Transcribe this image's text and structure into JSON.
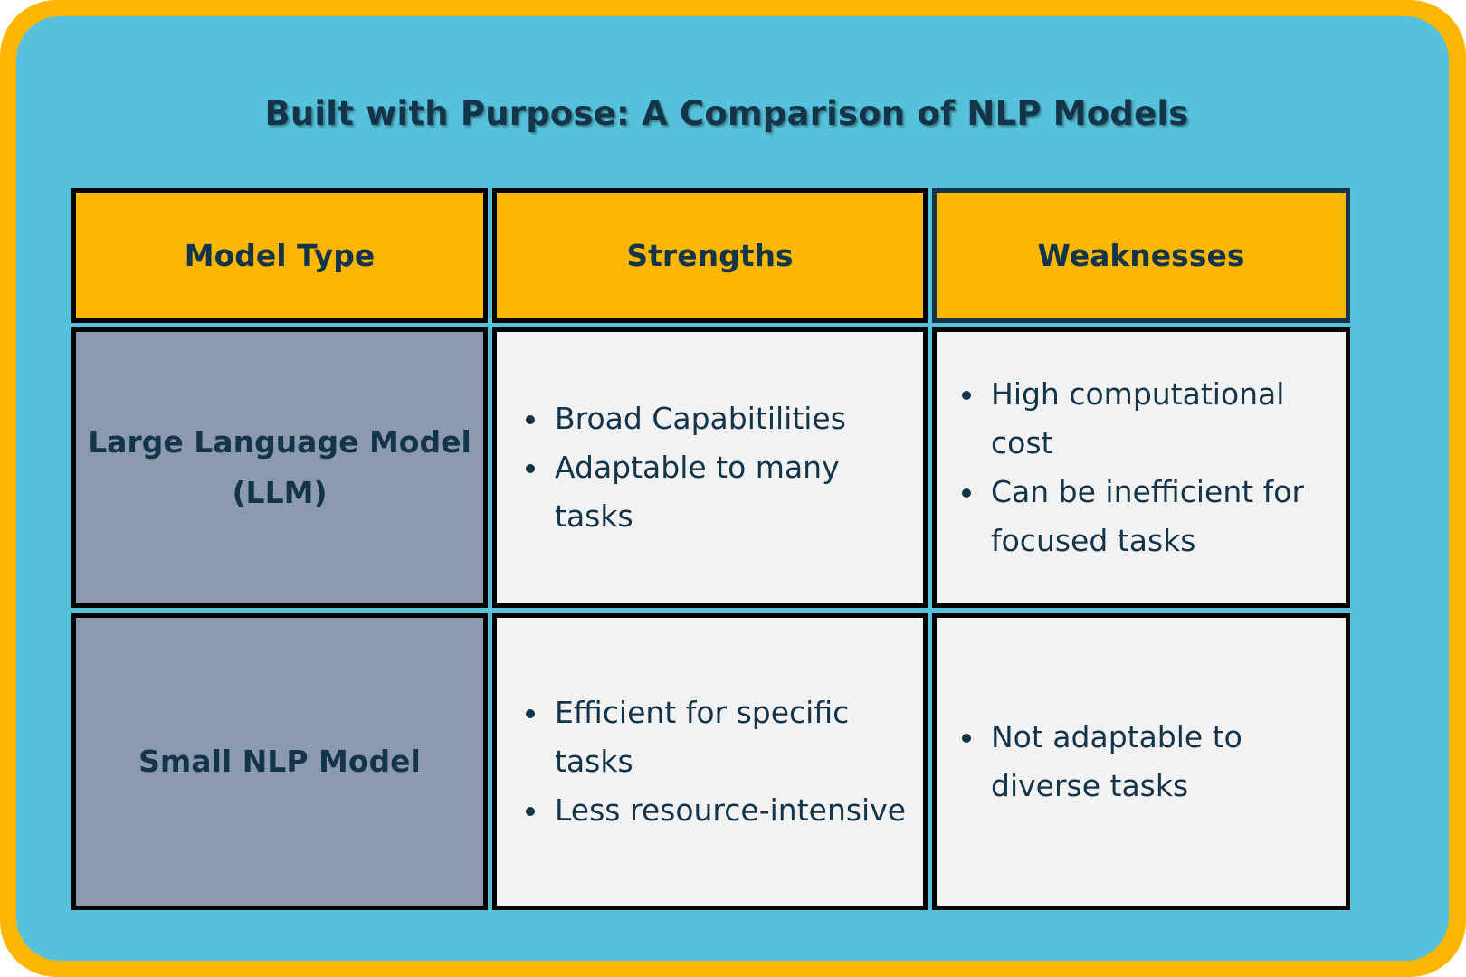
{
  "title": "Built with Purpose: A Comparison of NLP Models",
  "headers": [
    "Model Type",
    "Strengths",
    "Weaknesses"
  ],
  "rows": [
    {
      "model": [
        "Large Language Model",
        "(LLM)"
      ],
      "strengths": [
        "Broad Capabitilities",
        "Adaptable to many tasks"
      ],
      "weaknesses": [
        "High computational cost",
        "Can be inefficient for focused tasks"
      ]
    },
    {
      "model": [
        "Small NLP Model"
      ],
      "strengths": [
        "Efficient for specific tasks",
        "Less resource-intensive"
      ],
      "weaknesses": [
        "Not adaptable to diverse tasks"
      ]
    }
  ],
  "colors": {
    "outer_frame": "#fbb700",
    "panel": "#56c1da",
    "header_fill": "#fbb700",
    "row_header_fill": "#8c9ab0",
    "cell_fill": "#f2f2f2",
    "text": "#14344a"
  }
}
